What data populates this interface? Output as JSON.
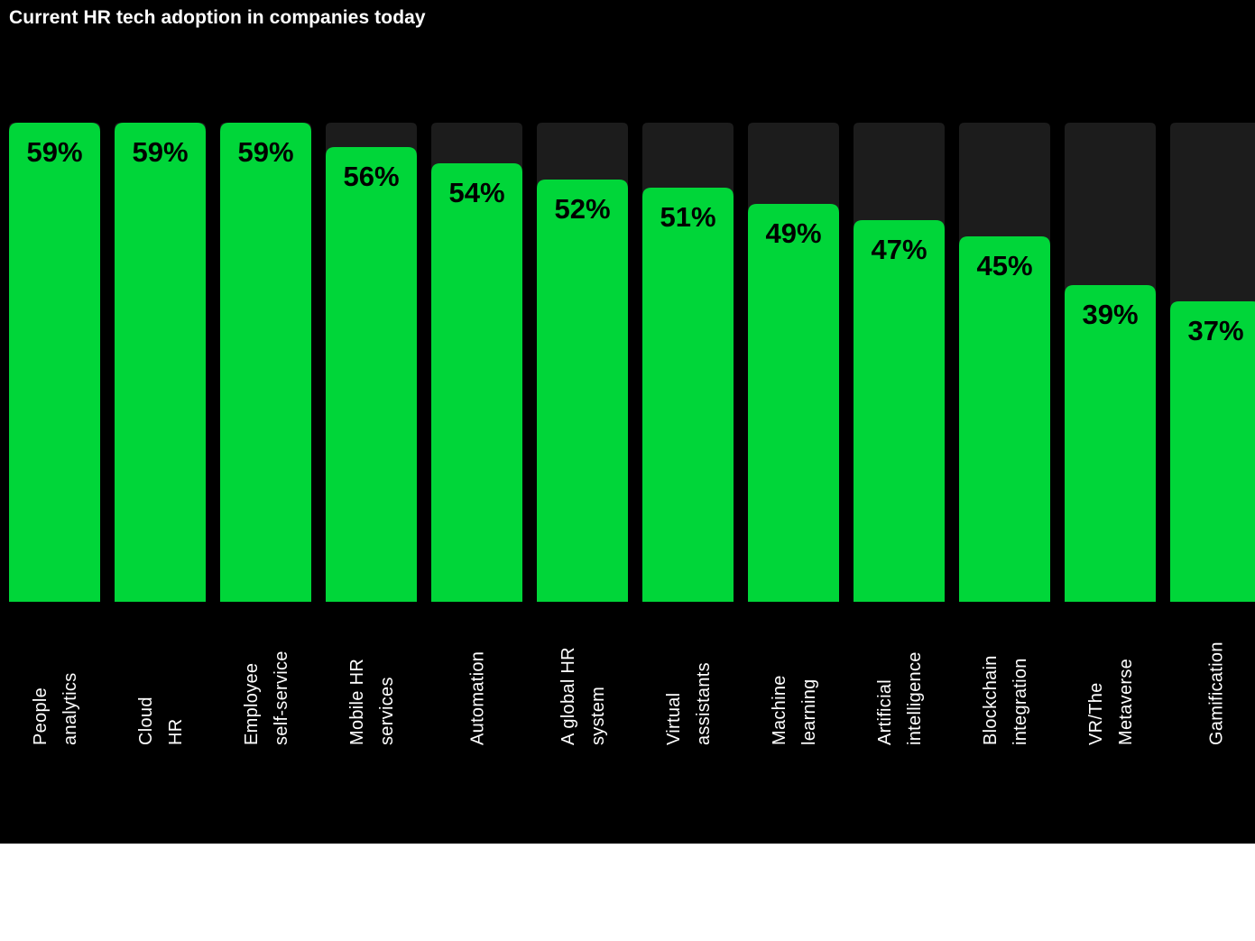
{
  "chart_data": {
    "type": "bar",
    "title": "Current HR tech adoption in companies today",
    "xlabel": "",
    "ylabel": "",
    "ylim": [
      0,
      100
    ],
    "grid": false,
    "legend": "none",
    "value_suffix": "%",
    "categories": [
      [
        "People",
        "analytics"
      ],
      [
        "Cloud",
        "HR"
      ],
      [
        "Employee",
        "self-service"
      ],
      [
        "Mobile HR",
        "services"
      ],
      [
        "Automation"
      ],
      [
        "A global HR",
        "system"
      ],
      [
        "Virtual",
        "assistants"
      ],
      [
        "Machine",
        "learning"
      ],
      [
        "Artificial",
        "intelligence"
      ],
      [
        "Blockchain",
        "integration"
      ],
      [
        "VR/The",
        "Metaverse"
      ],
      [
        "Gamification"
      ]
    ],
    "values": [
      59,
      59,
      59,
      56,
      54,
      52,
      51,
      49,
      47,
      45,
      39,
      37
    ],
    "colors": {
      "background": "#000000",
      "track": "#1c1c1c",
      "bar": "#00d639",
      "label_on_bar": "#000000",
      "text": "#ffffff"
    }
  }
}
